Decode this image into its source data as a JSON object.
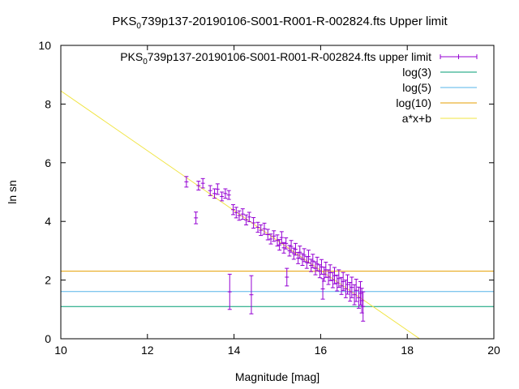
{
  "chart_data": {
    "type": "scatter",
    "title": {
      "pre": "PKS",
      "sub": "0",
      "post": "739p137-20190106-S001-R001-R-002824.fts Upper limit"
    },
    "xlabel": "Magnitude [mag]",
    "ylabel": "ln sn",
    "xlim": [
      10,
      20
    ],
    "ylim": [
      0,
      10
    ],
    "xticks": [
      10,
      12,
      14,
      16,
      18,
      20
    ],
    "yticks": [
      0,
      2,
      4,
      6,
      8,
      10
    ],
    "grid": false,
    "legend_position": "top-right",
    "series": [
      {
        "name": {
          "pre": "PKS",
          "sub": "0",
          "post": "739p137-20190106-S001-R001-R-002824.fts upper limit"
        },
        "kind": "errorbars",
        "color": "#9400d3",
        "points": [
          [
            12.9,
            5.35,
            0.18
          ],
          [
            13.12,
            4.12,
            0.2
          ],
          [
            13.18,
            5.22,
            0.15
          ],
          [
            13.28,
            5.3,
            0.16
          ],
          [
            13.45,
            5.05,
            0.17
          ],
          [
            13.55,
            4.95,
            0.16
          ],
          [
            13.62,
            5.1,
            0.18
          ],
          [
            13.72,
            4.85,
            0.15
          ],
          [
            13.8,
            4.95,
            0.16
          ],
          [
            13.88,
            4.9,
            0.15
          ],
          [
            13.9,
            1.6,
            0.6
          ],
          [
            13.98,
            4.4,
            0.17
          ],
          [
            14.05,
            4.3,
            0.18
          ],
          [
            14.12,
            4.2,
            0.16
          ],
          [
            14.2,
            4.25,
            0.18
          ],
          [
            14.28,
            4.05,
            0.17
          ],
          [
            14.35,
            4.15,
            0.16
          ],
          [
            14.4,
            1.5,
            0.65
          ],
          [
            14.45,
            3.95,
            0.18
          ],
          [
            14.55,
            3.8,
            0.17
          ],
          [
            14.62,
            3.7,
            0.18
          ],
          [
            14.7,
            3.75,
            0.19
          ],
          [
            14.78,
            3.55,
            0.18
          ],
          [
            14.85,
            3.4,
            0.17
          ],
          [
            14.92,
            3.5,
            0.18
          ],
          [
            15.0,
            3.35,
            0.19
          ],
          [
            15.05,
            3.2,
            0.18
          ],
          [
            15.1,
            3.45,
            0.2
          ],
          [
            15.15,
            3.1,
            0.18
          ],
          [
            15.2,
            3.25,
            0.19
          ],
          [
            15.22,
            2.1,
            0.3
          ],
          [
            15.28,
            3.0,
            0.18
          ],
          [
            15.32,
            3.15,
            0.2
          ],
          [
            15.38,
            2.9,
            0.19
          ],
          [
            15.42,
            3.05,
            0.2
          ],
          [
            15.48,
            2.75,
            0.19
          ],
          [
            15.52,
            2.95,
            0.21
          ],
          [
            15.58,
            2.7,
            0.2
          ],
          [
            15.62,
            2.85,
            0.22
          ],
          [
            15.68,
            2.6,
            0.2
          ],
          [
            15.72,
            2.8,
            0.22
          ],
          [
            15.78,
            2.5,
            0.21
          ],
          [
            15.82,
            2.65,
            0.23
          ],
          [
            15.88,
            2.4,
            0.22
          ],
          [
            15.92,
            2.55,
            0.23
          ],
          [
            15.98,
            2.3,
            0.22
          ],
          [
            16.02,
            2.45,
            0.25
          ],
          [
            16.05,
            1.7,
            0.35
          ],
          [
            16.08,
            2.2,
            0.24
          ],
          [
            16.12,
            2.35,
            0.26
          ],
          [
            16.18,
            2.1,
            0.25
          ],
          [
            16.22,
            2.25,
            0.27
          ],
          [
            16.28,
            2.0,
            0.26
          ],
          [
            16.32,
            2.15,
            0.28
          ],
          [
            16.38,
            1.9,
            0.27
          ],
          [
            16.42,
            2.05,
            0.3
          ],
          [
            16.48,
            1.8,
            0.29
          ],
          [
            16.52,
            1.95,
            0.31
          ],
          [
            16.58,
            1.7,
            0.3
          ],
          [
            16.62,
            1.85,
            0.33
          ],
          [
            16.68,
            1.6,
            0.32
          ],
          [
            16.72,
            1.75,
            0.35
          ],
          [
            16.78,
            1.5,
            0.34
          ],
          [
            16.82,
            1.65,
            0.38
          ],
          [
            16.88,
            1.4,
            0.36
          ],
          [
            16.92,
            1.55,
            0.4
          ],
          [
            16.95,
            1.3,
            0.42
          ],
          [
            16.98,
            1.1,
            0.5
          ]
        ]
      },
      {
        "name": {
          "pre": "log(3)"
        },
        "kind": "hline",
        "y": 1.0986,
        "color": "#009e73"
      },
      {
        "name": {
          "pre": "log(5)"
        },
        "kind": "hline",
        "y": 1.6094,
        "color": "#56b4e9"
      },
      {
        "name": {
          "pre": "log(10)"
        },
        "kind": "hline",
        "y": 2.3026,
        "color": "#e69f00"
      },
      {
        "name": {
          "pre": "a*x+b"
        },
        "kind": "fit",
        "slope": -1.02,
        "intercept": 18.65,
        "color": "#f0e442"
      }
    ]
  }
}
